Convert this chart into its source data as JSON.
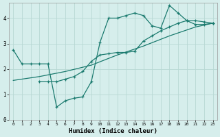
{
  "xlabel": "Humidex (Indice chaleur)",
  "bg_color": "#d6eeec",
  "line_color": "#1a7a6e",
  "grid_color": "#b8d8d4",
  "xlim": [
    -0.5,
    23.5
  ],
  "ylim": [
    0,
    4.6
  ],
  "yticks": [
    0,
    1,
    2,
    3,
    4
  ],
  "xticks": [
    0,
    1,
    2,
    3,
    4,
    5,
    6,
    7,
    8,
    9,
    10,
    11,
    12,
    13,
    14,
    15,
    16,
    17,
    18,
    19,
    20,
    21,
    22,
    23
  ],
  "line1_x": [
    0,
    1,
    2,
    3,
    4,
    5,
    6,
    7,
    8,
    9,
    10,
    11,
    12,
    13,
    14,
    15,
    16,
    17,
    18,
    19,
    20,
    21,
    22,
    23
  ],
  "line1_y": [
    2.75,
    2.2,
    2.2,
    2.2,
    2.2,
    0.5,
    0.75,
    0.85,
    0.9,
    1.5,
    3.05,
    4.0,
    4.0,
    4.1,
    4.2,
    4.1,
    3.7,
    3.6,
    4.5,
    4.2,
    3.9,
    3.75,
    3.75,
    3.8
  ],
  "line2_x": [
    3,
    4,
    5,
    6,
    7,
    8,
    9,
    10,
    11,
    12,
    13,
    14,
    15,
    16,
    17,
    18,
    19,
    20,
    21,
    22,
    23
  ],
  "line2_y": [
    1.5,
    1.5,
    1.5,
    1.6,
    1.7,
    1.9,
    2.3,
    2.55,
    2.6,
    2.65,
    2.65,
    2.7,
    3.1,
    3.3,
    3.5,
    3.65,
    3.8,
    3.9,
    3.9,
    3.85,
    3.8
  ],
  "line3_x": [
    0,
    3,
    6,
    9,
    12,
    15,
    18,
    21,
    23
  ],
  "line3_y": [
    1.55,
    1.7,
    1.9,
    2.15,
    2.55,
    2.9,
    3.3,
    3.65,
    3.8
  ]
}
